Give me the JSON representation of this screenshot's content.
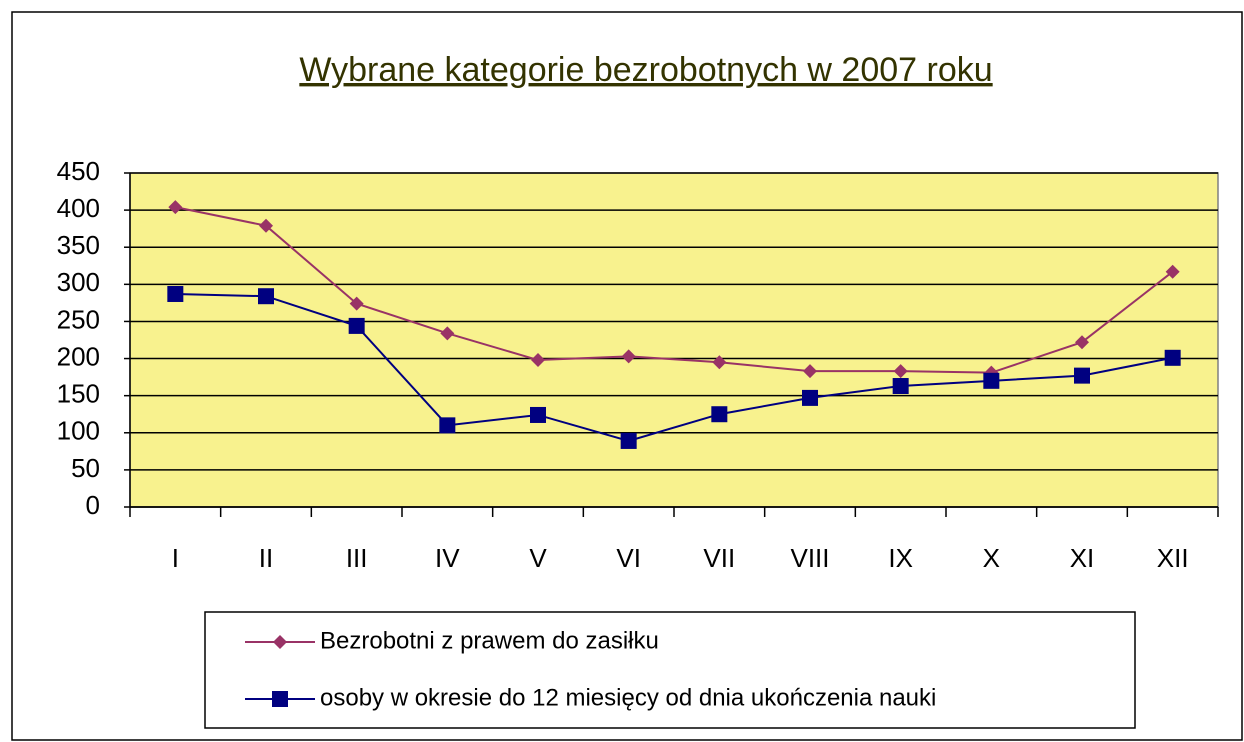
{
  "chart_data": {
    "type": "line",
    "title": "Wybrane kategorie bezrobotnych w 2007 roku",
    "categories": [
      "I",
      "II",
      "III",
      "IV",
      "V",
      "VI",
      "VII",
      "VIII",
      "IX",
      "X",
      "XI",
      "XII"
    ],
    "series": [
      {
        "name": "Bezrobotni z prawem do zasiłku",
        "color": "#993366",
        "marker": "diamond",
        "values": [
          404,
          379,
          274,
          234,
          198,
          203,
          195,
          183,
          183,
          181,
          222,
          317
        ]
      },
      {
        "name": "osoby w okresie do 12 miesięcy od dnia ukończenia nauki",
        "color": "#000080",
        "marker": "square",
        "values": [
          287,
          284,
          244,
          110,
          124,
          89,
          125,
          147,
          163,
          170,
          177,
          201
        ]
      }
    ],
    "ylim": [
      0,
      450
    ],
    "yticks": [
      0,
      50,
      100,
      150,
      200,
      250,
      300,
      350,
      400,
      450
    ],
    "grid": true,
    "plot_background": "#f8f28e"
  }
}
